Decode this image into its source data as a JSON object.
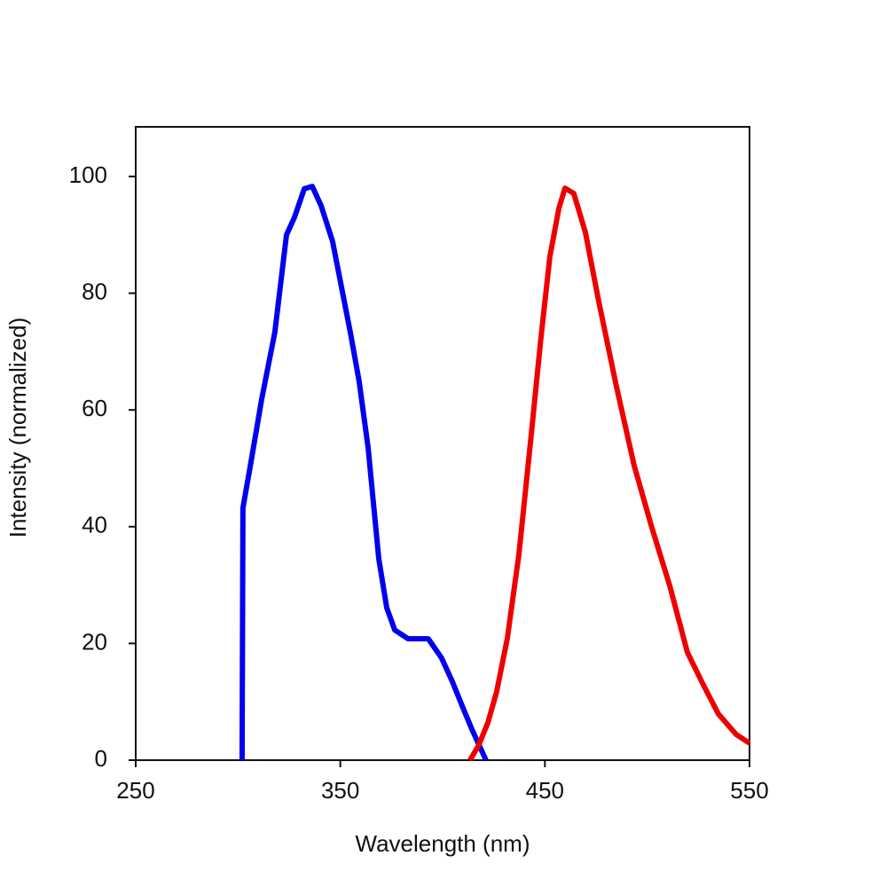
{
  "chart_data": {
    "type": "line",
    "x_label": "Wavelength (nm)",
    "y_label": "Intensity (normalized)",
    "xlim": [
      250,
      550
    ],
    "xticks": [
      250,
      350,
      450,
      550
    ],
    "ylim": [
      0,
      108.5
    ],
    "yticks": [
      0,
      20,
      40,
      60,
      80,
      100
    ],
    "series": [
      {
        "color": "#0000ee",
        "x": [
          302,
          302.4,
          306.4,
          311.6,
          318,
          323.7,
          327.6,
          332.4,
          336.3,
          340.6,
          346.2,
          354.9,
          359.2,
          363.6,
          368.8,
          372.7,
          376.6,
          383.1,
          393,
          399.5,
          404.7,
          409.9,
          414.3,
          421.2
        ],
        "values": [
          0,
          43.2,
          51.2,
          61.9,
          73.3,
          90,
          93,
          97.9,
          98.3,
          95,
          88.9,
          73.3,
          64.9,
          53.5,
          34.5,
          26.1,
          22.3,
          20.8,
          20.8,
          17.5,
          13.5,
          9,
          5.3,
          0
        ]
      },
      {
        "color": "#ee0000",
        "x": [
          413.4,
          417.7,
          422.1,
          426.4,
          431.6,
          437.3,
          442.9,
          448.1,
          452.4,
          456.8,
          459.8,
          464.1,
          469.8,
          476.3,
          484.9,
          493.6,
          502.3,
          511,
          519.6,
          527,
          534.8,
          543.5,
          550
        ],
        "values": [
          0,
          2.6,
          6.4,
          11.7,
          20.8,
          35.3,
          54.3,
          72.5,
          86.2,
          94.5,
          98,
          97.1,
          90.4,
          78.6,
          64.1,
          50.5,
          39.8,
          29.9,
          18.5,
          13.2,
          7.9,
          4.4,
          2.9
        ]
      }
    ]
  }
}
